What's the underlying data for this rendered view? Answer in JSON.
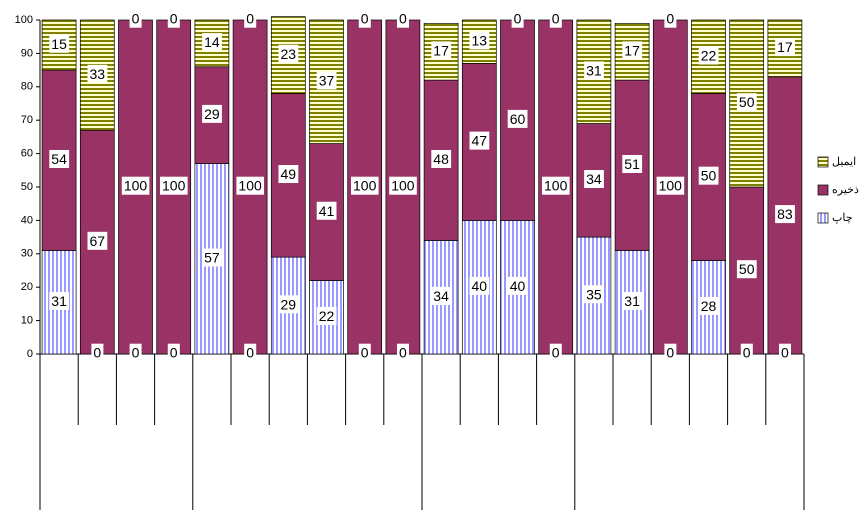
{
  "chart_data": {
    "type": "stacked_bar",
    "categories": [
      null,
      null,
      null,
      null,
      null,
      null,
      null,
      null,
      null,
      null,
      null,
      null,
      null,
      null,
      null,
      null,
      null,
      null,
      null,
      null
    ],
    "series": [
      {
        "name": "چاپ",
        "color": "#9999ff",
        "values": [
          31,
          0,
          0,
          0,
          57,
          0,
          29,
          22,
          0,
          0,
          34,
          40,
          40,
          0,
          35,
          31,
          0,
          28,
          0,
          0
        ]
      },
      {
        "name": "ذخیره",
        "color": "#993366",
        "values": [
          54,
          67,
          100,
          100,
          29,
          100,
          49,
          41,
          100,
          100,
          48,
          47,
          60,
          100,
          34,
          51,
          100,
          50,
          50,
          83
        ]
      },
      {
        "name": "ایمیل",
        "color": "#808000",
        "values": [
          15,
          33,
          0,
          0,
          14,
          0,
          23,
          37,
          0,
          0,
          17,
          13,
          0,
          0,
          31,
          17,
          0,
          22,
          50,
          17
        ]
      }
    ],
    "ylim": [
      0,
      100
    ],
    "yticks": [
      0,
      10,
      20,
      30,
      40,
      50,
      60,
      70,
      80,
      90,
      100
    ],
    "legend": "right"
  }
}
